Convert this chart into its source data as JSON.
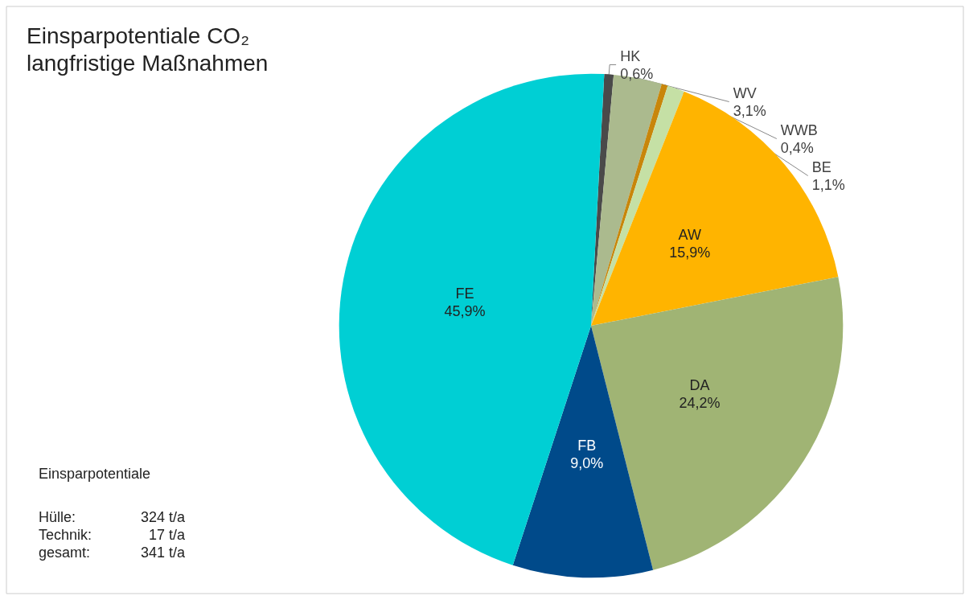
{
  "chart_data": {
    "type": "pie",
    "title": "Einsparpotentiale CO₂\nlangfristige Maßnahmen",
    "categories": [
      "HK",
      "WV",
      "WWB",
      "BE",
      "AW",
      "DA",
      "FB",
      "FE"
    ],
    "values": [
      0.6,
      3.1,
      0.4,
      1.1,
      15.9,
      24.2,
      9.0,
      45.9
    ],
    "value_labels": [
      "0,6%",
      "3,1%",
      "0,4%",
      "1,1%",
      "15,9%",
      "24,2%",
      "9,0%",
      "45,9%"
    ],
    "colors": [
      "#4a4a4a",
      "#abba8e",
      "#c8860a",
      "#c5e0a5",
      "#ffb400",
      "#a0b474",
      "#004a8a",
      "#00cfd4"
    ],
    "annotations": [
      "Einsparpotentiale",
      "Hülle: 324 t/a",
      "Technik: 17 t/a",
      "gesamt: 341 t/a"
    ],
    "legend": false
  }
}
